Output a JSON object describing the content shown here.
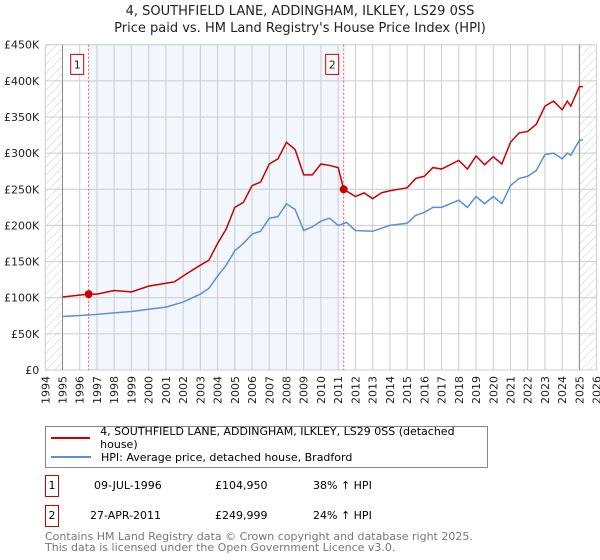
{
  "title": "4, SOUTHFIELD LANE, ADDINGHAM, ILKLEY, LS29 0SS",
  "subtitle": "Price paid vs. HM Land Registry's House Price Index (HPI)",
  "chart_data": {
    "type": "line",
    "title": "4, SOUTHFIELD LANE, ADDINGHAM, ILKLEY, LS29 0SS",
    "subtitle": "Price paid vs. HM Land Registry's House Price Index (HPI)",
    "xlim": [
      1994,
      2026
    ],
    "ylim": [
      0,
      450000
    ],
    "xticks": [
      "1994",
      "1995",
      "1996",
      "1997",
      "1998",
      "1999",
      "2000",
      "2001",
      "2002",
      "2003",
      "2004",
      "2005",
      "2006",
      "2007",
      "2008",
      "2009",
      "2010",
      "2011",
      "2012",
      "2013",
      "2014",
      "2015",
      "2016",
      "2017",
      "2018",
      "2019",
      "2020",
      "2021",
      "2022",
      "2023",
      "2024",
      "2025",
      "2026"
    ],
    "yticks": [
      "£0",
      "£50K",
      "£100K",
      "£150K",
      "£200K",
      "£250K",
      "£300K",
      "£350K",
      "£400K",
      "£450K"
    ],
    "grid": true,
    "series": [
      {
        "name": "4, SOUTHFIELD LANE, ADDINGHAM, ILKLEY, LS29 0SS (detached house)",
        "color": "#cc0000",
        "x": [
          1995,
          1996.5,
          1997,
          1998,
          1999,
          2000,
          2001,
          2001.5,
          2002,
          2003,
          2003.5,
          2004,
          2004.5,
          2005,
          2005.5,
          2006,
          2006.5,
          2007,
          2007.5,
          2008,
          2008.5,
          2009,
          2009.5,
          2010,
          2010.5,
          2011,
          2011.32,
          2012,
          2012.5,
          2013,
          2013.5,
          2014,
          2015,
          2015.5,
          2016,
          2016.5,
          2017,
          2018,
          2018.5,
          2019,
          2019.5,
          2020,
          2020.5,
          2021,
          2021.5,
          2022,
          2022.5,
          2023,
          2023.5,
          2024,
          2024.3,
          2024.5,
          2025,
          2025.2
        ],
        "y": [
          101,
          105,
          105,
          110,
          108,
          116,
          120,
          122,
          130,
          145,
          152,
          175,
          195,
          225,
          232,
          255,
          260,
          285,
          292,
          315,
          305,
          270,
          270,
          285,
          283,
          280,
          250,
          240,
          245,
          237,
          245,
          248,
          252,
          265,
          268,
          280,
          278,
          290,
          278,
          296,
          284,
          295,
          285,
          315,
          328,
          330,
          340,
          365,
          372,
          360,
          372,
          365,
          392,
          392
        ]
      },
      {
        "name": "HPI: Average price, detached house, Bradford",
        "color": "#5b8fd6",
        "x": [
          1995,
          1996.5,
          1998,
          1999,
          2000,
          2001,
          2002,
          2003,
          2003.5,
          2004,
          2004.5,
          2005,
          2005.5,
          2006,
          2006.5,
          2007,
          2007.5,
          2008,
          2008.5,
          2009,
          2009.5,
          2010,
          2010.5,
          2011,
          2011.5,
          2012,
          2013,
          2013.5,
          2014,
          2015,
          2015.5,
          2016,
          2016.5,
          2017,
          2018,
          2018.5,
          2019,
          2019.5,
          2020,
          2020.5,
          2021,
          2021.5,
          2022,
          2022.5,
          2023,
          2023.5,
          2024,
          2024.3,
          2024.5,
          2025,
          2025.2
        ],
        "y": [
          74,
          76,
          79,
          81,
          84,
          87,
          94,
          105,
          113,
          130,
          145,
          165,
          175,
          188,
          192,
          210,
          212,
          230,
          222,
          193,
          198,
          206,
          210,
          200,
          204,
          193,
          192,
          196,
          200,
          203,
          214,
          218,
          225,
          225,
          235,
          225,
          240,
          230,
          240,
          230,
          255,
          265,
          268,
          276,
          298,
          300,
          292,
          300,
          297,
          318,
          318
        ]
      }
    ],
    "y_units": "thousands GBP",
    "sales": [
      {
        "label": "1",
        "x": 1996.52,
        "y": 104.95
      },
      {
        "label": "2",
        "x": 2011.32,
        "y": 249.999
      }
    ],
    "legend_placement": "below"
  },
  "legend": [
    "4, SOUTHFIELD LANE, ADDINGHAM, ILKLEY, LS29 0SS (detached house)",
    "HPI: Average price, detached house, Bradford"
  ],
  "transactions": [
    {
      "num": "1",
      "date": "09-JUL-1996",
      "price": "£104,950",
      "hpi": "38% ↑ HPI"
    },
    {
      "num": "2",
      "date": "27-APR-2011",
      "price": "£249,999",
      "hpi": "24% ↑ HPI"
    }
  ],
  "footer": [
    "Contains HM Land Registry data © Crown copyright and database right 2025.",
    "This data is licensed under the Open Government Licence v3.0."
  ]
}
